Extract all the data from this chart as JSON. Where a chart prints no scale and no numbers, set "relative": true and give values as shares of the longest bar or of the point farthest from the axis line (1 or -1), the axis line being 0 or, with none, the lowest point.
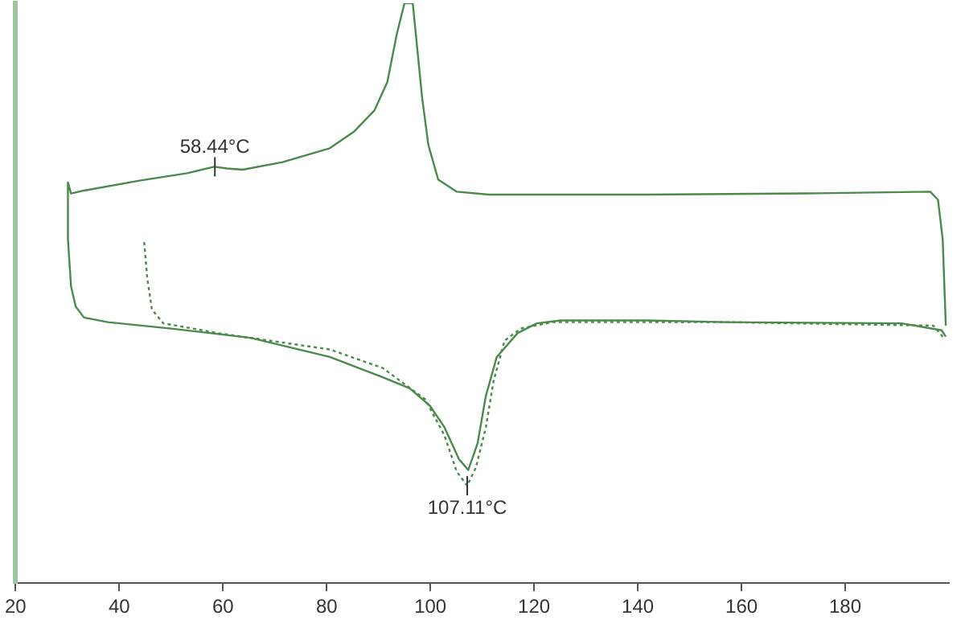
{
  "chart_data": {
    "type": "line",
    "relative": true,
    "xlim": [
      20,
      200
    ],
    "xticks": [
      20,
      40,
      60,
      80,
      100,
      120,
      140,
      160,
      180
    ],
    "grid": false,
    "legend": false,
    "marker": "none",
    "series": [
      {
        "color": "#4a8a4a",
        "line_style": "solid",
        "x": [
          199.4,
          198.6,
          190.9,
          157.2,
          141.9,
          125.1,
          120.5,
          116.8,
          112.8,
          110.7,
          109.1,
          107.3,
          105.5,
          102.7,
          99.9,
          96.0,
          90.8,
          80.6,
          65.3,
          50.0,
          37.8,
          33.2,
          31.6,
          30.7,
          30.1,
          30.1,
          30.7,
          33.2,
          43.9,
          53.1,
          58.3,
          60.8,
          63.8,
          71.5,
          80.6,
          85.2,
          89.2,
          91.7,
          93.5,
          95.0,
          96.6,
          97.2,
          98.4,
          99.6,
          101.5,
          105.1,
          111.3,
          141.9,
          172.5,
          196.4,
          197.9,
          198.8,
          199.4
        ],
        "values": [
          0.425,
          0.436,
          0.448,
          0.45,
          0.453,
          0.453,
          0.448,
          0.431,
          0.39,
          0.323,
          0.241,
          0.195,
          0.214,
          0.269,
          0.306,
          0.336,
          0.355,
          0.39,
          0.423,
          0.439,
          0.45,
          0.458,
          0.477,
          0.512,
          0.593,
          0.691,
          0.672,
          0.677,
          0.694,
          0.707,
          0.718,
          0.715,
          0.713,
          0.726,
          0.75,
          0.778,
          0.815,
          0.864,
          0.946,
          1,
          1,
          0.946,
          0.838,
          0.756,
          0.696,
          0.675,
          0.67,
          0.67,
          0.672,
          0.675,
          0.661,
          0.593,
          0.444
        ]
      },
      {
        "color": "#4a8a4a",
        "line_style": "dotted",
        "x": [
          44.8,
          45.4,
          46.3,
          48.5,
          59.2,
          80.6,
          90.8,
          99.0,
          102.7,
          105.1,
          107.11,
          108.8,
          110.7,
          112.2,
          114.3,
          117.4,
          123.5,
          157.2,
          197.0,
          198.8
        ],
        "values": [
          0.588,
          0.526,
          0.472,
          0.448,
          0.431,
          0.403,
          0.371,
          0.317,
          0.255,
          0.192,
          0.168,
          0.2,
          0.269,
          0.349,
          0.418,
          0.439,
          0.45,
          0.45,
          0.444,
          0.425
        ]
      }
    ],
    "annotations": [
      {
        "text": "58.44°C",
        "x": 58.44,
        "y": 0.718
      },
      {
        "text": "107.11°C",
        "x": 107.11,
        "y": 0.168
      }
    ]
  }
}
